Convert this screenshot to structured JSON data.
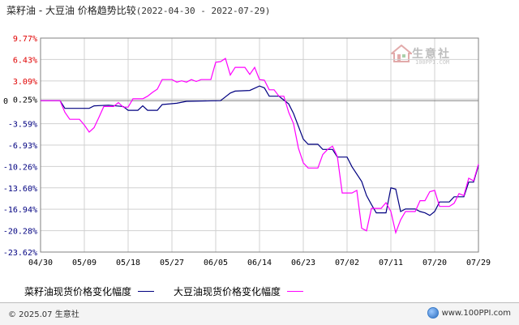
{
  "title": {
    "main": "菜籽油 - 大豆油 价格趋势比较",
    "date_range": "(2022-04-30 - 2022-07-29)"
  },
  "watermark": {
    "name": "生意社",
    "site": "100PPI.COM",
    "icon": "house-logo-icon"
  },
  "legend": [
    {
      "label": "菜籽油现货价格变化幅度",
      "color": "#000080"
    },
    {
      "label": "大豆油现货价格变化幅度",
      "color": "#ff00ff"
    }
  ],
  "footer": {
    "left": "© 2025.07 生意社",
    "right": "www.100PPI.com",
    "icon": "globe-icon"
  },
  "colors": {
    "positive_axis": "#e00000",
    "negative_axis": "#000080",
    "zero_axis": "#000000",
    "grid": "#d0d0d0"
  },
  "chart_data": {
    "type": "line",
    "title": "菜籽油 - 大豆油 价格趋势比较",
    "xlabel": "",
    "ylabel": "",
    "grid": true,
    "legend_position": "bottom",
    "ylim": [
      -23.62,
      9.77
    ],
    "yticks": [
      {
        "value": 9.77,
        "label": "9.77%"
      },
      {
        "value": 6.43,
        "label": "6.43%"
      },
      {
        "value": 3.09,
        "label": "3.09%"
      },
      {
        "value": 0.25,
        "label": "0.25%"
      },
      {
        "value": 0,
        "label": "0"
      },
      {
        "value": -3.59,
        "label": "-3.59%"
      },
      {
        "value": -6.93,
        "label": "-6.93%"
      },
      {
        "value": -10.26,
        "label": "-10.26%"
      },
      {
        "value": -13.6,
        "label": "-13.60%"
      },
      {
        "value": -16.94,
        "label": "-16.94%"
      },
      {
        "value": -20.28,
        "label": "-20.28%"
      },
      {
        "value": -23.62,
        "label": "-23.62%"
      }
    ],
    "xticks": [
      {
        "day": 0,
        "label": "04/30"
      },
      {
        "day": 9,
        "label": "05/09"
      },
      {
        "day": 18,
        "label": "05/18"
      },
      {
        "day": 27,
        "label": "05/27"
      },
      {
        "day": 36,
        "label": "06/05"
      },
      {
        "day": 45,
        "label": "06/14"
      },
      {
        "day": 54,
        "label": "06/23"
      },
      {
        "day": 63,
        "label": "07/02"
      },
      {
        "day": 72,
        "label": "07/11"
      },
      {
        "day": 81,
        "label": "07/20"
      },
      {
        "day": 90,
        "label": "07/29"
      }
    ],
    "series": [
      {
        "name": "菜籽油现货价格变化幅度",
        "color": "#000080",
        "points": [
          [
            0,
            0.0
          ],
          [
            4,
            0.0
          ],
          [
            5,
            -1.2
          ],
          [
            10,
            -1.2
          ],
          [
            11,
            -0.8
          ],
          [
            14,
            -0.7
          ],
          [
            17,
            -0.9
          ],
          [
            18,
            -1.5
          ],
          [
            20,
            -1.5
          ],
          [
            21,
            -0.8
          ],
          [
            22,
            -1.5
          ],
          [
            24,
            -1.5
          ],
          [
            25,
            -0.6
          ],
          [
            28,
            -0.4
          ],
          [
            30,
            -0.1
          ],
          [
            37,
            0.0
          ],
          [
            39,
            1.2
          ],
          [
            40,
            1.5
          ],
          [
            43,
            1.6
          ],
          [
            45,
            2.3
          ],
          [
            46,
            2.0
          ],
          [
            47,
            0.7
          ],
          [
            49,
            0.7
          ],
          [
            50,
            0.1
          ],
          [
            51,
            -0.5
          ],
          [
            52,
            -2.0
          ],
          [
            53,
            -4.0
          ],
          [
            54,
            -6.0
          ],
          [
            55,
            -6.8
          ],
          [
            57,
            -6.8
          ],
          [
            58,
            -7.6
          ],
          [
            60,
            -7.6
          ],
          [
            61,
            -8.8
          ],
          [
            63,
            -8.8
          ],
          [
            64,
            -10.3
          ],
          [
            66,
            -12.6
          ],
          [
            67,
            -14.8
          ],
          [
            68,
            -16.2
          ],
          [
            69,
            -17.5
          ],
          [
            71,
            -17.5
          ],
          [
            72,
            -13.6
          ],
          [
            73,
            -13.8
          ],
          [
            74,
            -17.3
          ],
          [
            75,
            -16.9
          ],
          [
            77,
            -16.9
          ],
          [
            78,
            -17.3
          ],
          [
            79,
            -17.5
          ],
          [
            80,
            -17.9
          ],
          [
            81,
            -17.3
          ],
          [
            82,
            -15.8
          ],
          [
            84,
            -15.8
          ],
          [
            85,
            -15.0
          ],
          [
            87,
            -15.0
          ],
          [
            88,
            -12.7
          ],
          [
            89,
            -12.7
          ],
          [
            90,
            -10.1
          ]
        ]
      },
      {
        "name": "大豆油现货价格变化幅度",
        "color": "#ff00ff",
        "points": [
          [
            0,
            0.0
          ],
          [
            4,
            0.0
          ],
          [
            5,
            -1.8
          ],
          [
            6,
            -2.9
          ],
          [
            8,
            -2.9
          ],
          [
            9,
            -3.8
          ],
          [
            10,
            -4.9
          ],
          [
            11,
            -4.2
          ],
          [
            12,
            -2.6
          ],
          [
            13,
            -0.9
          ],
          [
            15,
            -0.9
          ],
          [
            16,
            -0.3
          ],
          [
            17,
            -1.0
          ],
          [
            18,
            -1.0
          ],
          [
            19,
            0.3
          ],
          [
            21,
            0.3
          ],
          [
            22,
            0.7
          ],
          [
            23,
            1.3
          ],
          [
            24,
            1.8
          ],
          [
            25,
            3.3
          ],
          [
            27,
            3.3
          ],
          [
            28,
            2.9
          ],
          [
            29,
            3.1
          ],
          [
            30,
            2.9
          ],
          [
            31,
            3.3
          ],
          [
            32,
            3.0
          ],
          [
            33,
            3.3
          ],
          [
            35,
            3.3
          ],
          [
            36,
            6.0
          ],
          [
            37,
            6.1
          ],
          [
            38,
            6.6
          ],
          [
            39,
            4.0
          ],
          [
            40,
            5.2
          ],
          [
            42,
            5.2
          ],
          [
            43,
            4.1
          ],
          [
            44,
            5.2
          ],
          [
            45,
            3.3
          ],
          [
            46,
            3.2
          ],
          [
            47,
            1.7
          ],
          [
            48,
            1.7
          ],
          [
            49,
            0.7
          ],
          [
            50,
            0.7
          ],
          [
            51,
            -1.8
          ],
          [
            52,
            -3.6
          ],
          [
            53,
            -7.4
          ],
          [
            54,
            -9.7
          ],
          [
            55,
            -10.5
          ],
          [
            57,
            -10.5
          ],
          [
            58,
            -8.4
          ],
          [
            59,
            -7.6
          ],
          [
            60,
            -7.1
          ],
          [
            61,
            -8.7
          ],
          [
            62,
            -14.4
          ],
          [
            64,
            -14.4
          ],
          [
            65,
            -14.0
          ],
          [
            66,
            -19.9
          ],
          [
            67,
            -20.3
          ],
          [
            68,
            -16.8
          ],
          [
            70,
            -16.8
          ],
          [
            71,
            -15.9
          ],
          [
            72,
            -17.3
          ],
          [
            73,
            -20.6
          ],
          [
            74,
            -18.6
          ],
          [
            75,
            -17.3
          ],
          [
            77,
            -17.3
          ],
          [
            78,
            -15.6
          ],
          [
            79,
            -15.6
          ],
          [
            80,
            -14.2
          ],
          [
            81,
            -14.0
          ],
          [
            82,
            -16.5
          ],
          [
            84,
            -16.5
          ],
          [
            85,
            -16.0
          ],
          [
            86,
            -14.5
          ],
          [
            87,
            -14.8
          ],
          [
            88,
            -12.1
          ],
          [
            89,
            -12.5
          ],
          [
            90,
            -9.9
          ]
        ]
      }
    ]
  }
}
